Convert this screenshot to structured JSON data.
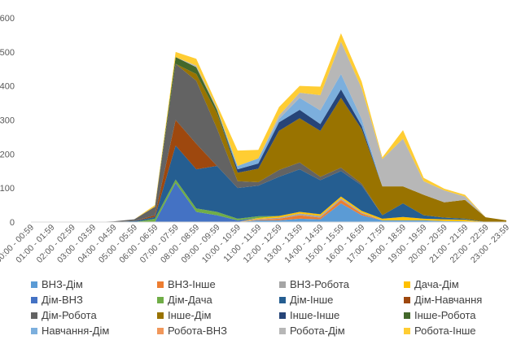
{
  "chart_data": {
    "type": "area",
    "stacked": true,
    "title": "",
    "xlabel": "",
    "ylabel": "",
    "ylim": [
      0,
      600
    ],
    "yticks": [
      0,
      100,
      200,
      300,
      400,
      500,
      600
    ],
    "grid": false,
    "legend_position": "bottom",
    "categories": [
      "00:00 - 00:59",
      "01:00 - 01:59",
      "02:00 - 02:59",
      "03:00 - 03:59",
      "04:00 - 04:59",
      "05:00 - 05:59",
      "06:00 - 06:59",
      "07:00 - 07:59",
      "08:00 - 08:59",
      "09:00 - 09:59",
      "10:00 - 10:59",
      "11:00 - 11:59",
      "12:00 - 12:59",
      "13:00 - 13:59",
      "14:00 - 14:59",
      "15:00 - 15:59",
      "16:00 - 16:59",
      "17:00 - 17:59",
      "18:00 - 18:59",
      "19:00 - 19:59",
      "20:00 - 20:59",
      "21:00 - 21:59",
      "22:00 - 22:59",
      "23:00 - 23:59"
    ],
    "series": [
      {
        "name": "ВНЗ-Дім",
        "color": "#5B9BD5",
        "values": [
          0,
          0,
          0,
          0,
          0,
          0,
          0,
          0,
          0,
          0,
          0,
          5,
          5,
          10,
          8,
          55,
          20,
          5,
          5,
          5,
          3,
          2,
          0,
          0
        ]
      },
      {
        "name": "ВНЗ-Інше",
        "color": "#ED7D31",
        "values": [
          0,
          0,
          0,
          0,
          0,
          0,
          0,
          0,
          0,
          0,
          0,
          2,
          5,
          10,
          5,
          10,
          5,
          0,
          0,
          0,
          0,
          0,
          0,
          0
        ]
      },
      {
        "name": "ВНЗ-Робота",
        "color": "#A5A5A5",
        "values": [
          0,
          0,
          0,
          0,
          0,
          0,
          0,
          0,
          0,
          0,
          0,
          2,
          3,
          5,
          5,
          5,
          3,
          0,
          0,
          0,
          0,
          0,
          0,
          0
        ]
      },
      {
        "name": "Дача-Дім",
        "color": "#FFC000",
        "values": [
          0,
          0,
          0,
          0,
          0,
          0,
          0,
          0,
          0,
          0,
          0,
          3,
          5,
          5,
          5,
          5,
          5,
          5,
          10,
          5,
          5,
          5,
          0,
          0
        ]
      },
      {
        "name": "Дім-ВНЗ",
        "color": "#4472C4",
        "values": [
          0,
          0,
          0,
          0,
          0,
          0,
          0,
          115,
          30,
          20,
          5,
          0,
          0,
          0,
          0,
          0,
          0,
          0,
          0,
          0,
          0,
          0,
          0,
          0
        ]
      },
      {
        "name": "Дім-Дача",
        "color": "#70AD47",
        "values": [
          0,
          0,
          0,
          0,
          0,
          0,
          10,
          10,
          10,
          10,
          5,
          5,
          0,
          0,
          0,
          0,
          0,
          0,
          0,
          0,
          0,
          0,
          0,
          0
        ]
      },
      {
        "name": "Дім-Інше",
        "color": "#255E91",
        "values": [
          0,
          0,
          0,
          0,
          0,
          3,
          5,
          100,
          115,
          135,
          90,
          90,
          115,
          125,
          100,
          75,
          75,
          10,
          40,
          10,
          5,
          3,
          0,
          0
        ]
      },
      {
        "name": "Дім-Навчання",
        "color": "#9E480E",
        "values": [
          0,
          0,
          0,
          0,
          0,
          0,
          5,
          75,
          75,
          0,
          0,
          0,
          0,
          0,
          0,
          0,
          0,
          0,
          0,
          0,
          0,
          0,
          0,
          0
        ]
      },
      {
        "name": "Дім-Робота",
        "color": "#636363",
        "values": [
          0,
          0,
          0,
          0,
          2,
          5,
          25,
          165,
          185,
          110,
          20,
          10,
          20,
          20,
          10,
          10,
          5,
          0,
          0,
          0,
          0,
          0,
          0,
          0
        ]
      },
      {
        "name": "Інше-Дім",
        "color": "#997300",
        "values": [
          0,
          0,
          0,
          0,
          0,
          0,
          0,
          0,
          20,
          45,
          25,
          40,
          115,
          130,
          135,
          205,
          160,
          85,
          50,
          60,
          45,
          55,
          14,
          5
        ]
      },
      {
        "name": "Інше-Інше",
        "color": "#264478",
        "values": [
          0,
          0,
          0,
          0,
          0,
          0,
          0,
          0,
          0,
          0,
          10,
          15,
          25,
          25,
          20,
          25,
          10,
          0,
          0,
          0,
          0,
          0,
          0,
          0
        ]
      },
      {
        "name": "Інше-Робота",
        "color": "#43682B",
        "values": [
          0,
          0,
          0,
          0,
          0,
          0,
          0,
          20,
          20,
          10,
          0,
          0,
          0,
          0,
          0,
          0,
          0,
          0,
          0,
          0,
          0,
          0,
          0,
          0
        ]
      },
      {
        "name": "Навчання-Дім",
        "color": "#7CAFDD",
        "values": [
          0,
          0,
          0,
          0,
          0,
          0,
          0,
          0,
          0,
          0,
          10,
          15,
          10,
          35,
          40,
          45,
          20,
          0,
          0,
          0,
          0,
          0,
          0,
          0
        ]
      },
      {
        "name": "Робота-ВНЗ",
        "color": "#F1975A",
        "values": [
          0,
          0,
          0,
          0,
          0,
          0,
          0,
          0,
          0,
          0,
          0,
          0,
          0,
          0,
          0,
          0,
          0,
          0,
          0,
          0,
          0,
          0,
          0,
          0
        ]
      },
      {
        "name": "Робота-Дім",
        "color": "#B7B7B7",
        "values": [
          0,
          0,
          0,
          0,
          0,
          0,
          0,
          0,
          5,
          5,
          0,
          0,
          10,
          15,
          45,
          95,
          90,
          80,
          140,
          40,
          35,
          10,
          0,
          0
        ]
      },
      {
        "name": "Робота-Інше",
        "color": "#FFCD33",
        "values": [
          0,
          0,
          0,
          0,
          0,
          0,
          5,
          15,
          20,
          10,
          45,
          25,
          25,
          20,
          25,
          25,
          20,
          5,
          25,
          10,
          5,
          5,
          0,
          0
        ]
      }
    ]
  }
}
